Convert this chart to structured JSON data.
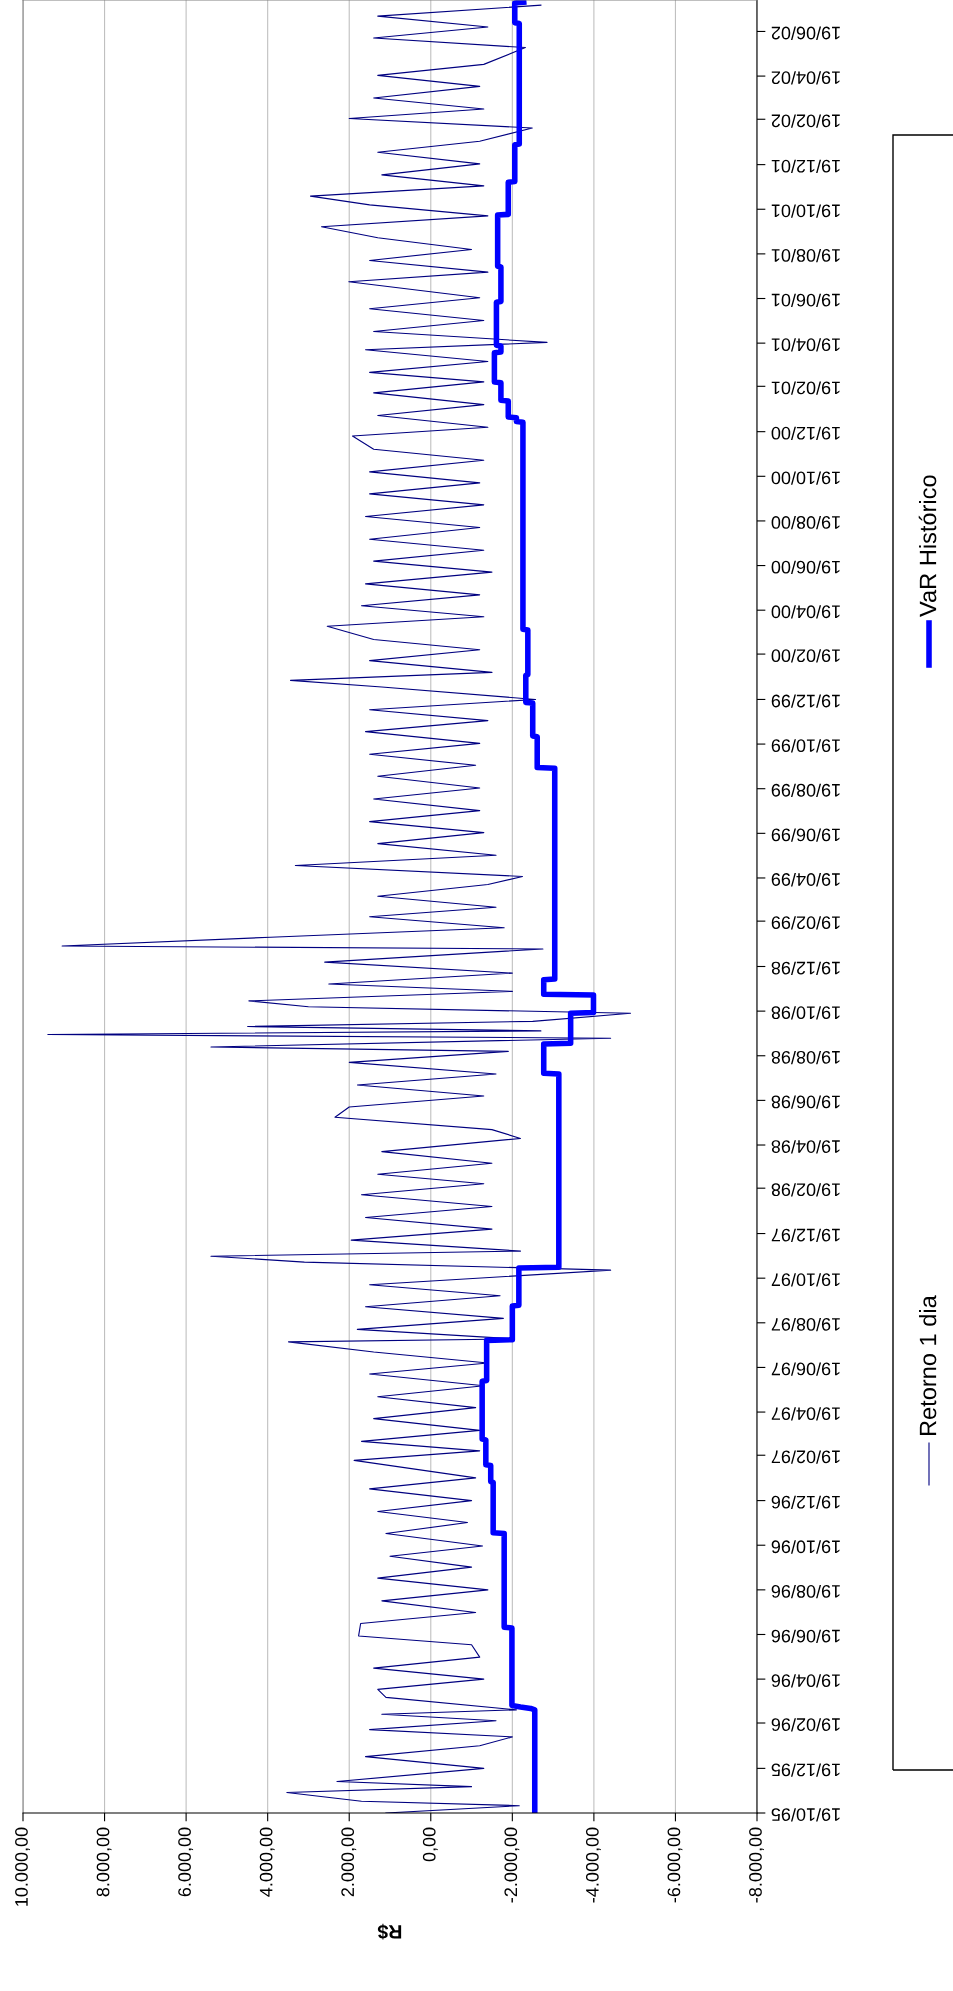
{
  "chart_data": {
    "type": "line",
    "orientation": "horizontal",
    "xlabel": "R$",
    "legend": "right",
    "grid": "x",
    "xlim": [
      10000,
      -8000
    ],
    "xticks": [
      {
        "value": 10000,
        "label": "10.000,00"
      },
      {
        "value": 8000,
        "label": "8.000,00"
      },
      {
        "value": 6000,
        "label": "6.000,00"
      },
      {
        "value": 4000,
        "label": "4.000,00"
      },
      {
        "value": 2000,
        "label": "2.000,00"
      },
      {
        "value": 0,
        "label": "0,00"
      },
      {
        "value": -2000,
        "label": "-2.000,00"
      },
      {
        "value": -4000,
        "label": "-4.000,00"
      },
      {
        "value": -6000,
        "label": "-6.000,00"
      },
      {
        "value": -8000,
        "label": "-8.000,00"
      }
    ],
    "ylim": [
      "1995-10-19",
      "2002-08-01"
    ],
    "yticks": [
      {
        "value": "1995-10-19",
        "label": "19/10/95"
      },
      {
        "value": "1995-12-19",
        "label": "19/12/95"
      },
      {
        "value": "1996-02-19",
        "label": "19/02/96"
      },
      {
        "value": "1996-04-19",
        "label": "19/04/96"
      },
      {
        "value": "1996-06-19",
        "label": "19/06/96"
      },
      {
        "value": "1996-08-19",
        "label": "19/08/96"
      },
      {
        "value": "1996-10-19",
        "label": "19/10/96"
      },
      {
        "value": "1996-12-19",
        "label": "19/12/96"
      },
      {
        "value": "1997-02-19",
        "label": "19/02/97"
      },
      {
        "value": "1997-04-19",
        "label": "19/04/97"
      },
      {
        "value": "1997-06-19",
        "label": "19/06/97"
      },
      {
        "value": "1997-08-19",
        "label": "19/08/97"
      },
      {
        "value": "1997-10-19",
        "label": "19/10/97"
      },
      {
        "value": "1997-12-19",
        "label": "19/12/97"
      },
      {
        "value": "1998-02-19",
        "label": "19/02/98"
      },
      {
        "value": "1998-04-19",
        "label": "19/04/98"
      },
      {
        "value": "1998-06-19",
        "label": "19/06/98"
      },
      {
        "value": "1998-08-19",
        "label": "19/08/98"
      },
      {
        "value": "1998-10-19",
        "label": "19/10/98"
      },
      {
        "value": "1998-12-19",
        "label": "19/12/98"
      },
      {
        "value": "1999-02-19",
        "label": "19/02/99"
      },
      {
        "value": "1999-04-19",
        "label": "19/04/99"
      },
      {
        "value": "1999-06-19",
        "label": "19/06/99"
      },
      {
        "value": "1999-08-19",
        "label": "19/08/99"
      },
      {
        "value": "1999-10-19",
        "label": "19/10/99"
      },
      {
        "value": "1999-12-19",
        "label": "19/12/99"
      },
      {
        "value": "2000-02-19",
        "label": "19/02/00"
      },
      {
        "value": "2000-04-19",
        "label": "19/04/00"
      },
      {
        "value": "2000-06-19",
        "label": "19/06/00"
      },
      {
        "value": "2000-08-19",
        "label": "19/08/00"
      },
      {
        "value": "2000-10-19",
        "label": "19/10/00"
      },
      {
        "value": "2000-12-19",
        "label": "19/12/00"
      },
      {
        "value": "2001-02-19",
        "label": "19/02/01"
      },
      {
        "value": "2001-04-19",
        "label": "19/04/01"
      },
      {
        "value": "2001-06-19",
        "label": "19/06/01"
      },
      {
        "value": "2001-08-19",
        "label": "19/08/01"
      },
      {
        "value": "2001-10-19",
        "label": "19/10/01"
      },
      {
        "value": "2001-12-19",
        "label": "19/12/01"
      },
      {
        "value": "2002-02-19",
        "label": "19/02/02"
      },
      {
        "value": "2002-04-19",
        "label": "19/04/02"
      },
      {
        "value": "2002-06-19",
        "label": "19/06/02"
      }
    ],
    "series": [
      {
        "name": "Retorno 1 dia",
        "color": "#000080",
        "x": [
          "1995-10-19",
          "1995-10-29",
          "1995-11-04",
          "1995-11-16",
          "1995-11-24",
          "1995-12-01",
          "1995-12-19",
          "1996-01-04",
          "1996-01-19",
          "1996-01-31",
          "1996-02-10",
          "1996-02-22",
          "1996-03-02",
          "1996-03-08",
          "1996-03-25",
          "1996-04-05",
          "1996-04-19",
          "1996-05-04",
          "1996-05-19",
          "1996-06-05",
          "1996-06-17",
          "1996-07-04",
          "1996-07-19",
          "1996-08-04",
          "1996-08-19",
          "1996-09-04",
          "1996-09-19",
          "1996-10-04",
          "1996-10-18",
          "1996-11-04",
          "1996-11-19",
          "1996-12-04",
          "1996-12-19",
          "1997-01-04",
          "1997-01-19",
          "1997-02-12",
          "1997-02-25",
          "1997-03-10",
          "1997-03-25",
          "1997-04-10",
          "1997-04-25",
          "1997-05-10",
          "1997-05-25",
          "1997-06-10",
          "1997-06-25",
          "1997-07-10",
          "1997-07-24",
          "1997-07-28",
          "1997-08-10",
          "1997-08-25",
          "1997-09-10",
          "1997-09-25",
          "1997-10-10",
          "1997-10-30",
          "1997-11-10",
          "1997-11-18",
          "1997-11-25",
          "1997-12-10",
          "1997-12-25",
          "1998-01-10",
          "1998-01-25",
          "1998-02-10",
          "1998-02-25",
          "1998-03-10",
          "1998-03-25",
          "1998-04-10",
          "1998-04-28",
          "1998-05-10",
          "1998-05-27",
          "1998-06-10",
          "1998-06-25",
          "1998-07-10",
          "1998-07-25",
          "1998-08-10",
          "1998-08-25",
          "1998-08-31",
          "1998-09-12",
          "1998-09-17",
          "1998-09-22",
          "1998-09-28",
          "1998-10-05",
          "1998-10-16",
          "1998-10-25",
          "1998-11-02",
          "1998-11-15",
          "1998-11-25",
          "1998-12-10",
          "1998-12-25",
          "1999-01-12",
          "1999-01-16",
          "1999-01-28",
          "1999-02-10",
          "1999-02-25",
          "1999-03-10",
          "1999-03-25",
          "1999-04-10",
          "1999-04-21",
          "1999-05-06",
          "1999-05-20",
          "1999-06-05",
          "1999-06-20",
          "1999-07-05",
          "1999-07-20",
          "1999-08-05",
          "1999-08-20",
          "1999-09-05",
          "1999-09-20",
          "1999-10-05",
          "1999-10-20",
          "1999-11-05",
          "1999-11-20",
          "1999-12-05",
          "1999-12-19",
          "2000-01-05",
          "2000-01-14",
          "2000-01-25",
          "2000-02-10",
          "2000-02-25",
          "2000-03-10",
          "2000-03-28",
          "2000-04-10",
          "2000-04-25",
          "2000-05-10",
          "2000-05-25",
          "2000-06-10",
          "2000-06-25",
          "2000-07-10",
          "2000-07-25",
          "2000-08-10",
          "2000-08-25",
          "2000-09-10",
          "2000-09-25",
          "2000-10-10",
          "2000-10-25",
          "2000-11-10",
          "2000-11-25",
          "2000-12-13",
          "2000-12-25",
          "2001-01-10",
          "2001-01-25",
          "2001-02-10",
          "2001-02-25",
          "2001-03-10",
          "2001-03-25",
          "2001-04-10",
          "2001-04-20",
          "2001-05-05",
          "2001-05-20",
          "2001-06-05",
          "2001-06-20",
          "2001-07-12",
          "2001-07-25",
          "2001-08-10",
          "2001-08-25",
          "2001-09-10",
          "2001-09-25",
          "2001-10-10",
          "2001-10-25",
          "2001-11-06",
          "2001-11-20",
          "2001-12-05",
          "2001-12-20",
          "2002-01-05",
          "2002-01-20",
          "2002-02-07",
          "2002-02-20",
          "2002-03-05",
          "2002-03-20",
          "2002-04-05",
          "2002-04-20",
          "2002-05-05",
          "2002-05-28",
          "2002-06-10",
          "2002-06-25",
          "2002-07-10",
          "2002-07-25"
        ],
        "values": [
          1100,
          -2170,
          1700,
          3530,
          -1000,
          2300,
          -1300,
          1600,
          -1200,
          -2000,
          1500,
          -1600,
          1200,
          -2100,
          1100,
          1300,
          -1300,
          1400,
          -1200,
          -1000,
          1770,
          1720,
          -1100,
          1200,
          -1400,
          1300,
          -1000,
          1000,
          -1270,
          1100,
          -900,
          1300,
          -1000,
          1500,
          -1100,
          1880,
          -1200,
          1700,
          -1200,
          1400,
          -1100,
          1300,
          -1300,
          1500,
          -1400,
          1400,
          3490,
          -2050,
          1800,
          -1780,
          1600,
          -1700,
          1500,
          -4410,
          3100,
          5390,
          -2200,
          1950,
          -1500,
          1600,
          -1500,
          1700,
          -1300,
          1300,
          -1500,
          1200,
          -2200,
          -1500,
          2350,
          2000,
          -1300,
          1800,
          -1600,
          2000,
          -1900,
          5390,
          -4410,
          9390,
          -2700,
          4490,
          -2500,
          -4900,
          3000,
          4460,
          -2000,
          2500,
          -2000,
          2600,
          -2750,
          9040,
          3930,
          -1800,
          1500,
          -1600,
          1300,
          -1400,
          -2250,
          3320,
          -1600,
          1300,
          -1300,
          1500,
          -1200,
          1400,
          -1200,
          1300,
          -1100,
          1500,
          -1200,
          1600,
          -1400,
          1500,
          -2570,
          1200,
          3440,
          -1500,
          1500,
          -1200,
          1400,
          2540,
          -1300,
          1700,
          -1200,
          1600,
          -1500,
          1400,
          -1300,
          1500,
          -1200,
          1600,
          -1300,
          1500,
          -1200,
          1500,
          -1300,
          1400,
          1920,
          -1400,
          1300,
          -1300,
          1400,
          -1300,
          1500,
          -1400,
          1600,
          -2850,
          1400,
          -1300,
          1500,
          -1200,
          2010,
          -1400,
          1500,
          -1000,
          1300,
          2680,
          -1400,
          1500,
          2950,
          -1300,
          1200,
          -1200,
          1300,
          -1200,
          -2490,
          2000,
          -1300,
          1400,
          -1200,
          1300,
          -1300,
          -2320,
          1400,
          -1400,
          1300,
          -2700
        ]
      },
      {
        "name": "VaR Histórico",
        "color": "#0000ff",
        "x": [
          "1995-10-19",
          "1996-03-08",
          "1996-03-10",
          "1996-03-12",
          "1996-03-14",
          "1996-06-28",
          "1996-06-29",
          "1996-11-04",
          "1996-11-05",
          "1997-01-13",
          "1997-01-14",
          "1997-02-05",
          "1997-02-06",
          "1997-03-12",
          "1997-03-13",
          "1997-05-31",
          "1997-06-01",
          "1997-07-26",
          "1997-07-27",
          "1997-09-11",
          "1997-09-12",
          "1997-11-02",
          "1997-11-03",
          "1998-07-25",
          "1998-07-26",
          "1998-09-04",
          "1998-09-05",
          "1998-10-16",
          "1998-10-17",
          "1998-11-10",
          "1998-11-11",
          "1998-12-01",
          "1998-12-02",
          "1999-09-16",
          "1999-09-17",
          "1999-10-29",
          "1999-10-30",
          "1999-12-14",
          "1999-12-15",
          "2000-01-21",
          "2000-01-22",
          "2000-03-23",
          "2000-03-24",
          "2001-01-01",
          "2001-01-02",
          "2001-01-07",
          "2001-01-08",
          "2001-01-30",
          "2001-01-31",
          "2001-02-24",
          "2001-02-25",
          "2001-04-06",
          "2001-04-07",
          "2001-04-15",
          "2001-04-16",
          "2001-06-14",
          "2001-06-15",
          "2001-08-01",
          "2001-08-02",
          "2001-10-11",
          "2001-10-12",
          "2001-11-25",
          "2001-11-26",
          "2002-01-15",
          "2002-01-16",
          "2002-06-30",
          "2002-07-01",
          "2002-07-28",
          "2002-07-29"
        ],
        "values": [
          -2550,
          -2550,
          -2450,
          -2200,
          -1990,
          -1990,
          -1800,
          -1800,
          -1530,
          -1530,
          -1470,
          -1470,
          -1350,
          -1350,
          -1260,
          -1260,
          -1370,
          -1370,
          -2000,
          -2000,
          -2160,
          -2160,
          -3140,
          -3140,
          -2770,
          -2770,
          -3430,
          -3430,
          -3990,
          -3990,
          -2770,
          -2770,
          -3040,
          -3040,
          -2610,
          -2610,
          -2500,
          -2500,
          -2330,
          -2330,
          -2380,
          -2380,
          -2260,
          -2260,
          -2100,
          -2100,
          -1900,
          -1900,
          -1720,
          -1720,
          -1560,
          -1560,
          -1720,
          -1720,
          -1610,
          -1610,
          -1720,
          -1720,
          -1640,
          -1640,
          -1900,
          -1900,
          -2060,
          -2060,
          -2170,
          -2170,
          -2060,
          -2060,
          -2280
        ]
      }
    ]
  }
}
